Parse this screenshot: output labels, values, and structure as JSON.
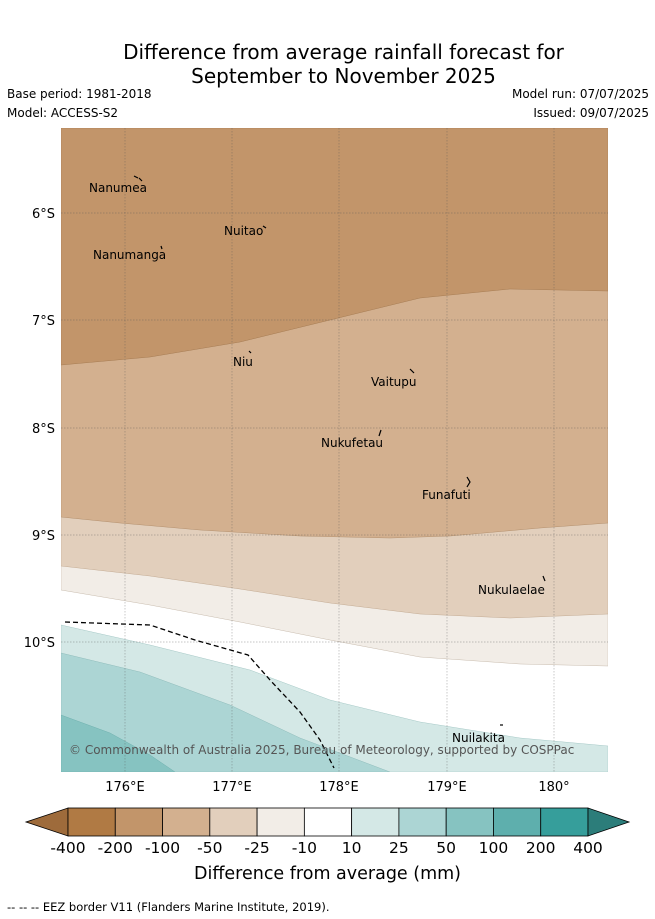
{
  "title_line1": "Difference from average rainfall forecast for",
  "title_line2": "September to November 2025",
  "base_period": "Base period: 1981-2018",
  "model": "Model: ACCESS-S2",
  "model_run": "Model run: 07/07/2025",
  "issued": "Issued: 09/07/2025",
  "copyright": "© Commonwealth of Australia 2025, Bureau of Meteorology, supported by COSPPac",
  "lat_labels": [
    "6°S",
    "7°S",
    "8°S",
    "9°S",
    "10°S"
  ],
  "lon_labels": [
    "176°E",
    "177°E",
    "178°E",
    "179°E",
    "180°"
  ],
  "places": [
    "Nanumea",
    "Nuitao",
    "Nanumanga",
    "Niu",
    "Vaitupu",
    "Nukufetau",
    "Funafuti",
    "Nukulaelae",
    "Nuilakita"
  ],
  "colorbar": {
    "ticks": [
      "-400",
      "-200",
      "-100",
      "-50",
      "-25",
      "-10",
      "10",
      "25",
      "50",
      "100",
      "200",
      "400"
    ],
    "colors": [
      "#9e6b3b",
      "#b07a44",
      "#c2956a",
      "#d3b08f",
      "#e2cfbc",
      "#f2ede7",
      "#ffffff",
      "#d4e8e6",
      "#acd5d4",
      "#86c3c1",
      "#5eafad",
      "#369e9b",
      "#2c7d7a"
    ],
    "title": "Difference from average (mm)"
  },
  "footnote": "-- -- -- EEZ border V11 (Flanders Marine Institute, 2019)."
}
